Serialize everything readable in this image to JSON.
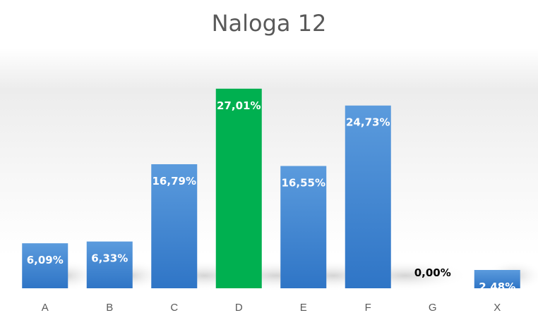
{
  "chart_data": {
    "type": "bar",
    "title": "Naloga 12",
    "categories": [
      "A",
      "B",
      "C",
      "D",
      "E",
      "F",
      "G",
      "X"
    ],
    "values": [
      6.09,
      6.33,
      16.79,
      27.01,
      16.55,
      24.73,
      0.0,
      2.48
    ],
    "value_labels": [
      "6,09%",
      "6,33%",
      "16,79%",
      "27,01%",
      "16,55%",
      "24,73%",
      "0,00%",
      "2,48%"
    ],
    "highlight_category": "D",
    "xlabel": "",
    "ylabel": "",
    "ylim": [
      0,
      31
    ],
    "grid": false,
    "legend": "none",
    "colors": {
      "bar": "#4f90d6",
      "bar_dark": "#2f75c6",
      "highlight": "#00b050",
      "label_on_bar": "#ffffff",
      "label_zero": "#000000",
      "axis_text": "#595959"
    }
  }
}
